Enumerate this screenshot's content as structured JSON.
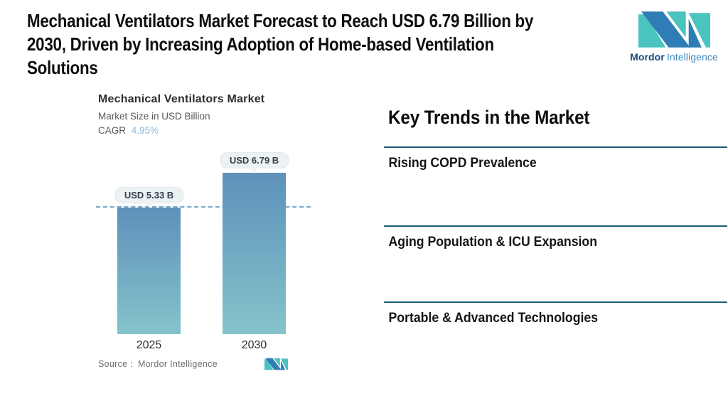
{
  "header": {
    "title_lines": [
      "Mechanical Ventilators Market Forecast to Reach USD 6.79 Billion by",
      "2030, Driven by Increasing Adoption of Home-based Ventilation",
      "Solutions"
    ]
  },
  "brand": {
    "name_primary": "Mordor",
    "name_secondary": "Intelligence",
    "teal": "#4bc3bf",
    "blue": "#2e7db6"
  },
  "chart_data": {
    "type": "bar",
    "title": "Mechanical Ventilators Market",
    "subtitle": "Market Size in USD Billion",
    "cagr_label": "CAGR",
    "cagr_value": "4.95%",
    "categories": [
      "2025",
      "2030"
    ],
    "values": [
      5.33,
      6.79
    ],
    "value_labels": [
      "USD 5.33 B",
      "USD 6.79 B"
    ],
    "unit": "USD Billion",
    "ylim": [
      0,
      6.79
    ],
    "grid": false,
    "legend": "none",
    "reference_line_value": 5.33,
    "reference_line_style": "dashed",
    "bar_color_top": "#5d91ba",
    "bar_color_bottom": "#85c3cb"
  },
  "source": {
    "prefix": "Source :",
    "name": "Mordor Intelligence"
  },
  "trends": {
    "heading": "Key Trends in the Market",
    "items": [
      "Rising COPD Prevalence",
      "Aging Population & ICU Expansion",
      "Portable & Advanced Technologies"
    ],
    "divider_color": "#1e5b7a"
  }
}
